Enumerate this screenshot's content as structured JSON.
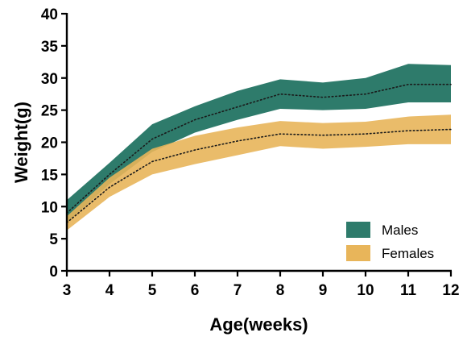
{
  "chart_data": {
    "type": "area",
    "title": "",
    "xlabel": "Age(weeks)",
    "ylabel": "Weight(g)",
    "x": [
      3,
      4,
      5,
      6,
      7,
      8,
      9,
      10,
      11,
      12
    ],
    "xlim": [
      3,
      12
    ],
    "ylim": [
      0,
      40
    ],
    "xticks": [
      "3",
      "4",
      "5",
      "6",
      "7",
      "8",
      "9",
      "10",
      "11",
      "12"
    ],
    "yticks": [
      "0",
      "5",
      "10",
      "15",
      "20",
      "25",
      "30",
      "35",
      "40"
    ],
    "grid": false,
    "legend_position": "bottom-right",
    "series": [
      {
        "name": "Males",
        "color": "#2e7b6b",
        "mean": [
          9,
          15,
          20.5,
          23.5,
          25.5,
          27.5,
          27,
          27.5,
          29,
          29
        ],
        "lower": [
          7.5,
          13.5,
          18.5,
          21.5,
          23.5,
          25.2,
          25,
          25.2,
          26.2,
          26.2
        ],
        "upper": [
          11,
          16.8,
          22.8,
          25.6,
          28,
          29.8,
          29.3,
          30,
          32.2,
          32
        ]
      },
      {
        "name": "Females",
        "color": "#e8b55a",
        "mean": [
          7.5,
          13,
          17,
          18.8,
          20.2,
          21.3,
          21.1,
          21.3,
          21.8,
          22
        ],
        "lower": [
          6.3,
          11.5,
          15,
          16.6,
          18,
          19.4,
          19,
          19.3,
          19.7,
          19.7
        ],
        "upper": [
          8.5,
          14.5,
          19,
          21,
          22.3,
          23.3,
          23,
          23.2,
          24,
          24.3
        ]
      }
    ]
  }
}
